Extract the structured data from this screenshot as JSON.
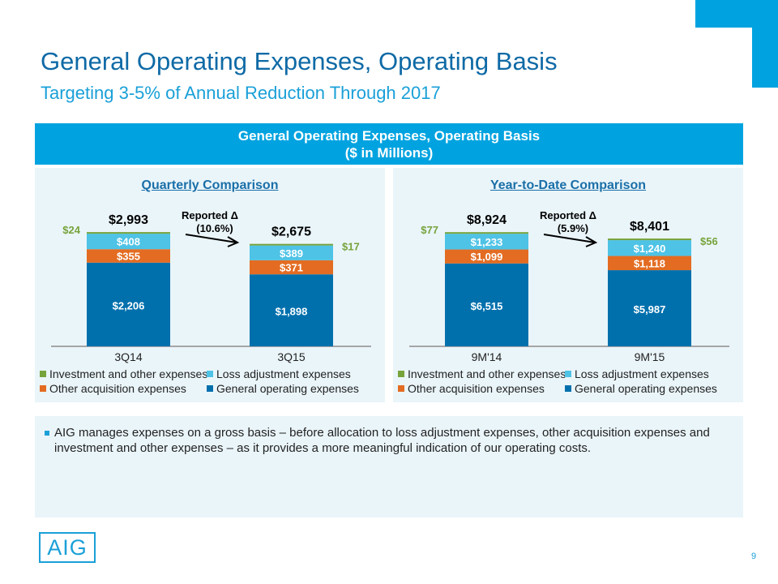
{
  "slide": {
    "title": "General Operating Expenses, Operating Basis",
    "subtitle": "Targeting 3-5% of Annual Reduction Through 2017",
    "header_line1": "General Operating Expenses, Operating Basis",
    "header_line2": "($ in Millions)",
    "note": "AIG manages expenses on a gross basis – before allocation to loss adjustment expenses, other acquisition expenses and investment and other expenses – as it provides a more meaningful indication of our operating costs.",
    "logo_text": "AIG",
    "page_number": "9"
  },
  "colors": {
    "brand_blue": "#00a3e0",
    "general_operating": "#0070ad",
    "other_acquisition": "#e36c22",
    "loss_adjustment": "#4ec3e6",
    "investment_other": "#77a33b"
  },
  "chart_data": [
    {
      "type": "bar",
      "stacked": true,
      "title": "Quarterly Comparison",
      "categories": [
        "3Q14",
        "3Q15"
      ],
      "series": [
        {
          "name": "General operating expenses",
          "values": [
            2206,
            1898
          ],
          "labels": [
            "$2,206",
            "$1,898"
          ]
        },
        {
          "name": "Other acquisition expenses",
          "values": [
            355,
            371
          ],
          "labels": [
            "$355",
            "$371"
          ]
        },
        {
          "name": "Loss adjustment expenses",
          "values": [
            408,
            389
          ],
          "labels": [
            "$408",
            "$389"
          ]
        },
        {
          "name": "Investment and other expenses",
          "values": [
            24,
            17
          ],
          "labels": [
            "$24",
            "$17"
          ]
        }
      ],
      "totals": [
        2993,
        2675
      ],
      "total_labels": [
        "$2,993",
        "$2,675"
      ],
      "annotation_line1": "Reported Δ",
      "annotation_line2": "(10.6%)",
      "legend": [
        "Investment and other expenses",
        "Loss adjustment expenses",
        "Other acquisition expenses",
        "General operating expenses"
      ],
      "legend_placement": "bottom",
      "ylim": [
        0,
        3000
      ],
      "grid": false,
      "xlabel": "",
      "ylabel": ""
    },
    {
      "type": "bar",
      "stacked": true,
      "title": "Year-to-Date Comparison",
      "categories": [
        "9M'14",
        "9M'15"
      ],
      "series": [
        {
          "name": "General operating expenses",
          "values": [
            6515,
            5987
          ],
          "labels": [
            "$6,515",
            "$5,987"
          ]
        },
        {
          "name": "Other acquisition expenses",
          "values": [
            1099,
            1118
          ],
          "labels": [
            "$1,099",
            "$1,118"
          ]
        },
        {
          "name": "Loss adjustment expenses",
          "values": [
            1233,
            1240
          ],
          "labels": [
            "$1,233",
            "$1,240"
          ]
        },
        {
          "name": "Investment and other expenses",
          "values": [
            77,
            56
          ],
          "labels": [
            "$77",
            "$56"
          ]
        }
      ],
      "totals": [
        8924,
        8401
      ],
      "total_labels": [
        "$8,924",
        "$8,401"
      ],
      "annotation_line1": "Reported Δ",
      "annotation_line2": "(5.9%)",
      "legend": [
        "Investment and other expenses",
        "Loss adjustment expenses",
        "Other acquisition expenses",
        "General operating expenses"
      ],
      "legend_placement": "bottom",
      "ylim": [
        0,
        9000
      ],
      "grid": false,
      "xlabel": "",
      "ylabel": ""
    }
  ]
}
